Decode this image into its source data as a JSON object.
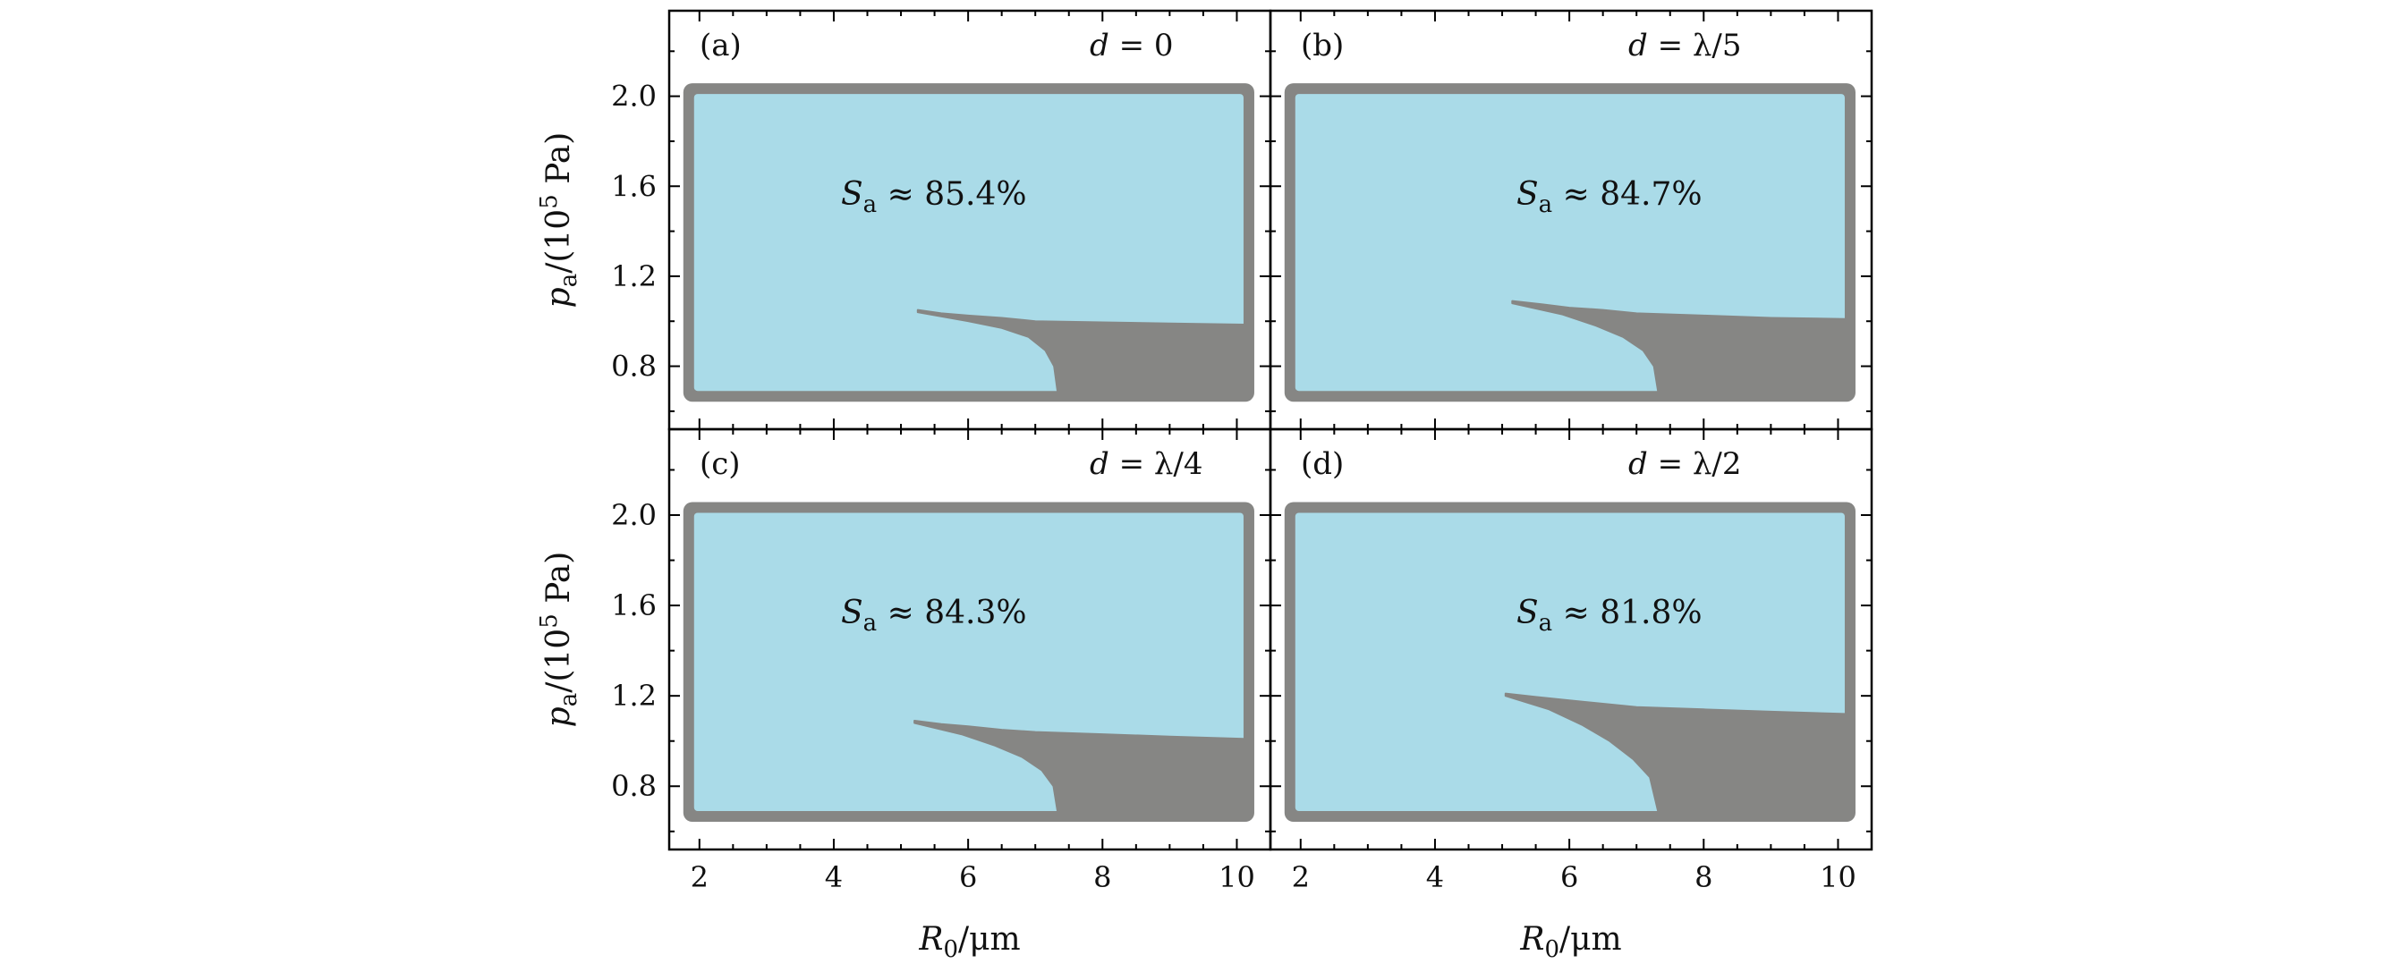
{
  "chart_data": {
    "type": "heatmap",
    "colors": {
      "stable": "#aadbe8",
      "unstable": "#868684",
      "frame": "#000000"
    },
    "xlim": [
      1.55,
      10.5
    ],
    "ylim": [
      0.52,
      2.38
    ],
    "xticks": [
      2,
      4,
      6,
      8,
      10
    ],
    "xtick_labels": [
      "2",
      "4",
      "6",
      "8",
      "10"
    ],
    "yticks": [
      0.8,
      1.2,
      1.6,
      2.0
    ],
    "ytick_labels": [
      "0.8",
      "1.2",
      "1.6",
      "2.0"
    ],
    "xlabel": {
      "main": "R",
      "sub": "0",
      "unit": "/μm"
    },
    "ylabel": {
      "main": "p",
      "sub": "a",
      "unit": "/(10",
      "sup": "5",
      "tail": " Pa)"
    },
    "panels": [
      {
        "label": "(a)",
        "title": {
          "prefix": "d",
          "rest": " = 0"
        },
        "ann": {
          "main": "S",
          "sub": "a",
          "rest": " ≈ 85.4%"
        },
        "stable_region": {
          "x_min": 1.92,
          "x_max": 10.1,
          "y_min": 0.69,
          "y_max": 2.01
        },
        "unstable_boundary": [
          [
            5.25,
            1.05
          ],
          [
            5.6,
            1.035
          ],
          [
            6.0,
            1.025
          ],
          [
            6.5,
            1.015
          ],
          [
            7.0,
            1.0
          ],
          [
            8.0,
            0.995
          ],
          [
            9.0,
            0.99
          ],
          [
            10.1,
            0.985
          ]
        ],
        "unstable_tail": [
          [
            5.25,
            1.04
          ],
          [
            6.0,
            1.0
          ],
          [
            6.5,
            0.97
          ],
          [
            6.9,
            0.93
          ],
          [
            7.15,
            0.87
          ],
          [
            7.28,
            0.8
          ],
          [
            7.33,
            0.69
          ]
        ]
      },
      {
        "label": "(b)",
        "title": {
          "prefix": "d",
          "rest": " = λ/5"
        },
        "ann": {
          "main": "S",
          "sub": "a",
          "rest": " ≈ 84.7%"
        },
        "stable_region": {
          "x_min": 1.92,
          "x_max": 10.1,
          "y_min": 0.69,
          "y_max": 2.01
        },
        "unstable_boundary": [
          [
            5.15,
            1.09
          ],
          [
            5.6,
            1.075
          ],
          [
            6.0,
            1.06
          ],
          [
            6.5,
            1.05
          ],
          [
            7.0,
            1.035
          ],
          [
            8.0,
            1.025
          ],
          [
            9.0,
            1.015
          ],
          [
            10.1,
            1.01
          ]
        ],
        "unstable_tail": [
          [
            5.15,
            1.08
          ],
          [
            5.9,
            1.03
          ],
          [
            6.4,
            0.98
          ],
          [
            6.8,
            0.93
          ],
          [
            7.1,
            0.87
          ],
          [
            7.26,
            0.8
          ],
          [
            7.32,
            0.69
          ]
        ]
      },
      {
        "label": "(c)",
        "title": {
          "prefix": "d",
          "rest": " = λ/4"
        },
        "ann": {
          "main": "S",
          "sub": "a",
          "rest": " ≈ 84.3%"
        },
        "stable_region": {
          "x_min": 1.92,
          "x_max": 10.1,
          "y_min": 0.69,
          "y_max": 2.01
        },
        "unstable_boundary": [
          [
            5.2,
            1.09
          ],
          [
            5.6,
            1.075
          ],
          [
            6.0,
            1.065
          ],
          [
            6.5,
            1.05
          ],
          [
            7.0,
            1.04
          ],
          [
            8.0,
            1.03
          ],
          [
            9.0,
            1.02
          ],
          [
            10.1,
            1.01
          ]
        ],
        "unstable_tail": [
          [
            5.2,
            1.08
          ],
          [
            5.9,
            1.03
          ],
          [
            6.4,
            0.98
          ],
          [
            6.8,
            0.93
          ],
          [
            7.1,
            0.87
          ],
          [
            7.27,
            0.8
          ],
          [
            7.33,
            0.69
          ]
        ]
      },
      {
        "label": "(d)",
        "title": {
          "prefix": "d",
          "rest": " = λ/2"
        },
        "ann": {
          "main": "S",
          "sub": "a",
          "rest": " ≈ 81.8%"
        },
        "stable_region": {
          "x_min": 1.92,
          "x_max": 10.1,
          "y_min": 0.69,
          "y_max": 2.01
        },
        "unstable_boundary": [
          [
            5.05,
            1.21
          ],
          [
            5.5,
            1.195
          ],
          [
            6.0,
            1.18
          ],
          [
            6.5,
            1.165
          ],
          [
            7.0,
            1.15
          ],
          [
            8.0,
            1.14
          ],
          [
            9.0,
            1.13
          ],
          [
            10.1,
            1.12
          ]
        ],
        "unstable_tail": [
          [
            5.05,
            1.2
          ],
          [
            5.7,
            1.14
          ],
          [
            6.2,
            1.07
          ],
          [
            6.6,
            1.0
          ],
          [
            6.95,
            0.92
          ],
          [
            7.2,
            0.84
          ],
          [
            7.32,
            0.69
          ]
        ]
      }
    ]
  }
}
